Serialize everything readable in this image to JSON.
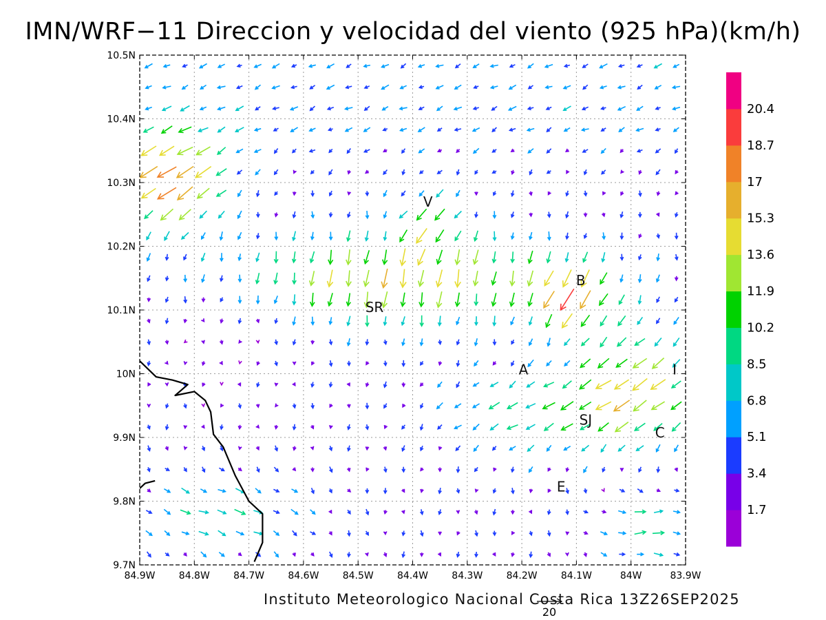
{
  "title": "IMN/WRF−11 Direccion y velocidad del viento (925 hPa)(km/h)",
  "credit": "Instituto Meteorologico Nacional Costa Rica  13Z26SEP2025",
  "map": {
    "lon_range": [
      -84.9,
      -83.9
    ],
    "lat_range": [
      9.7,
      10.5
    ],
    "x_ticks": [
      {
        "value": -84.9,
        "label": "84.9W"
      },
      {
        "value": -84.8,
        "label": "84.8W"
      },
      {
        "value": -84.7,
        "label": "84.7W"
      },
      {
        "value": -84.6,
        "label": "84.6W"
      },
      {
        "value": -84.5,
        "label": "84.5W"
      },
      {
        "value": -84.4,
        "label": "84.4W"
      },
      {
        "value": -84.3,
        "label": "84.3W"
      },
      {
        "value": -84.2,
        "label": "84.2W"
      },
      {
        "value": -84.1,
        "label": "84.1W"
      },
      {
        "value": -84.0,
        "label": "84W"
      },
      {
        "value": -83.9,
        "label": "83.9W"
      }
    ],
    "y_ticks": [
      {
        "value": 9.7,
        "label": "9.7N"
      },
      {
        "value": 9.8,
        "label": "9.8N"
      },
      {
        "value": 9.9,
        "label": "9.9N"
      },
      {
        "value": 10.0,
        "label": "10N"
      },
      {
        "value": 10.1,
        "label": "10.1N"
      },
      {
        "value": 10.2,
        "label": "10.2N"
      },
      {
        "value": 10.3,
        "label": "10.3N"
      },
      {
        "value": 10.4,
        "label": "10.4N"
      },
      {
        "value": 10.5,
        "label": "10.5N"
      }
    ],
    "grid": "dotted",
    "city_labels": [
      {
        "text": "V",
        "lon": -84.372,
        "lat": 10.262
      },
      {
        "text": "SR",
        "lon": -84.47,
        "lat": 10.097
      },
      {
        "text": "B",
        "lon": -84.092,
        "lat": 10.139
      },
      {
        "text": "A",
        "lon": -84.197,
        "lat": 9.999
      },
      {
        "text": "I",
        "lon": -83.92,
        "lat": 9.999
      },
      {
        "text": "SJ",
        "lon": -84.083,
        "lat": 9.92
      },
      {
        "text": "C",
        "lon": -83.947,
        "lat": 9.9
      },
      {
        "text": "E",
        "lon": -84.128,
        "lat": 9.815
      }
    ],
    "coastline": [
      [
        [
          -84.9,
          10.02
        ],
        [
          -84.87,
          9.995
        ],
        [
          -84.84,
          9.99
        ],
        [
          -84.812,
          9.983
        ],
        [
          -84.835,
          9.966
        ],
        [
          -84.8,
          9.972
        ],
        [
          -84.78,
          9.958
        ],
        [
          -84.77,
          9.94
        ],
        [
          -84.765,
          9.905
        ],
        [
          -84.747,
          9.885
        ],
        [
          -84.725,
          9.84
        ],
        [
          -84.7,
          9.8
        ],
        [
          -84.675,
          9.78
        ],
        [
          -84.675,
          9.735
        ],
        [
          -84.69,
          9.705
        ]
      ],
      [
        [
          -84.9,
          9.82
        ],
        [
          -84.89,
          9.828
        ],
        [
          -84.872,
          9.832
        ]
      ]
    ],
    "colorbar": {
      "levels": [
        "1.7",
        "3.4",
        "5.1",
        "6.8",
        "8.5",
        "10.2",
        "11.9",
        "13.6",
        "15.3",
        "17",
        "18.7",
        "20.4"
      ],
      "colors": [
        "#9B00D8",
        "#7800E8",
        "#1B3CFF",
        "#00A0FF",
        "#00C8C8",
        "#00D882",
        "#00D200",
        "#A0E632",
        "#E6DC32",
        "#E6AF2D",
        "#F08228",
        "#FA3C3C",
        "#F00082"
      ]
    },
    "reference_vector": {
      "label": "20",
      "value": 20
    },
    "wind": {
      "lon0": -84.9,
      "dlon": 0.03333,
      "nx": 31,
      "lat0": 9.7,
      "dlat": 0.03333,
      "ny": 25,
      "vectors": []
    }
  }
}
